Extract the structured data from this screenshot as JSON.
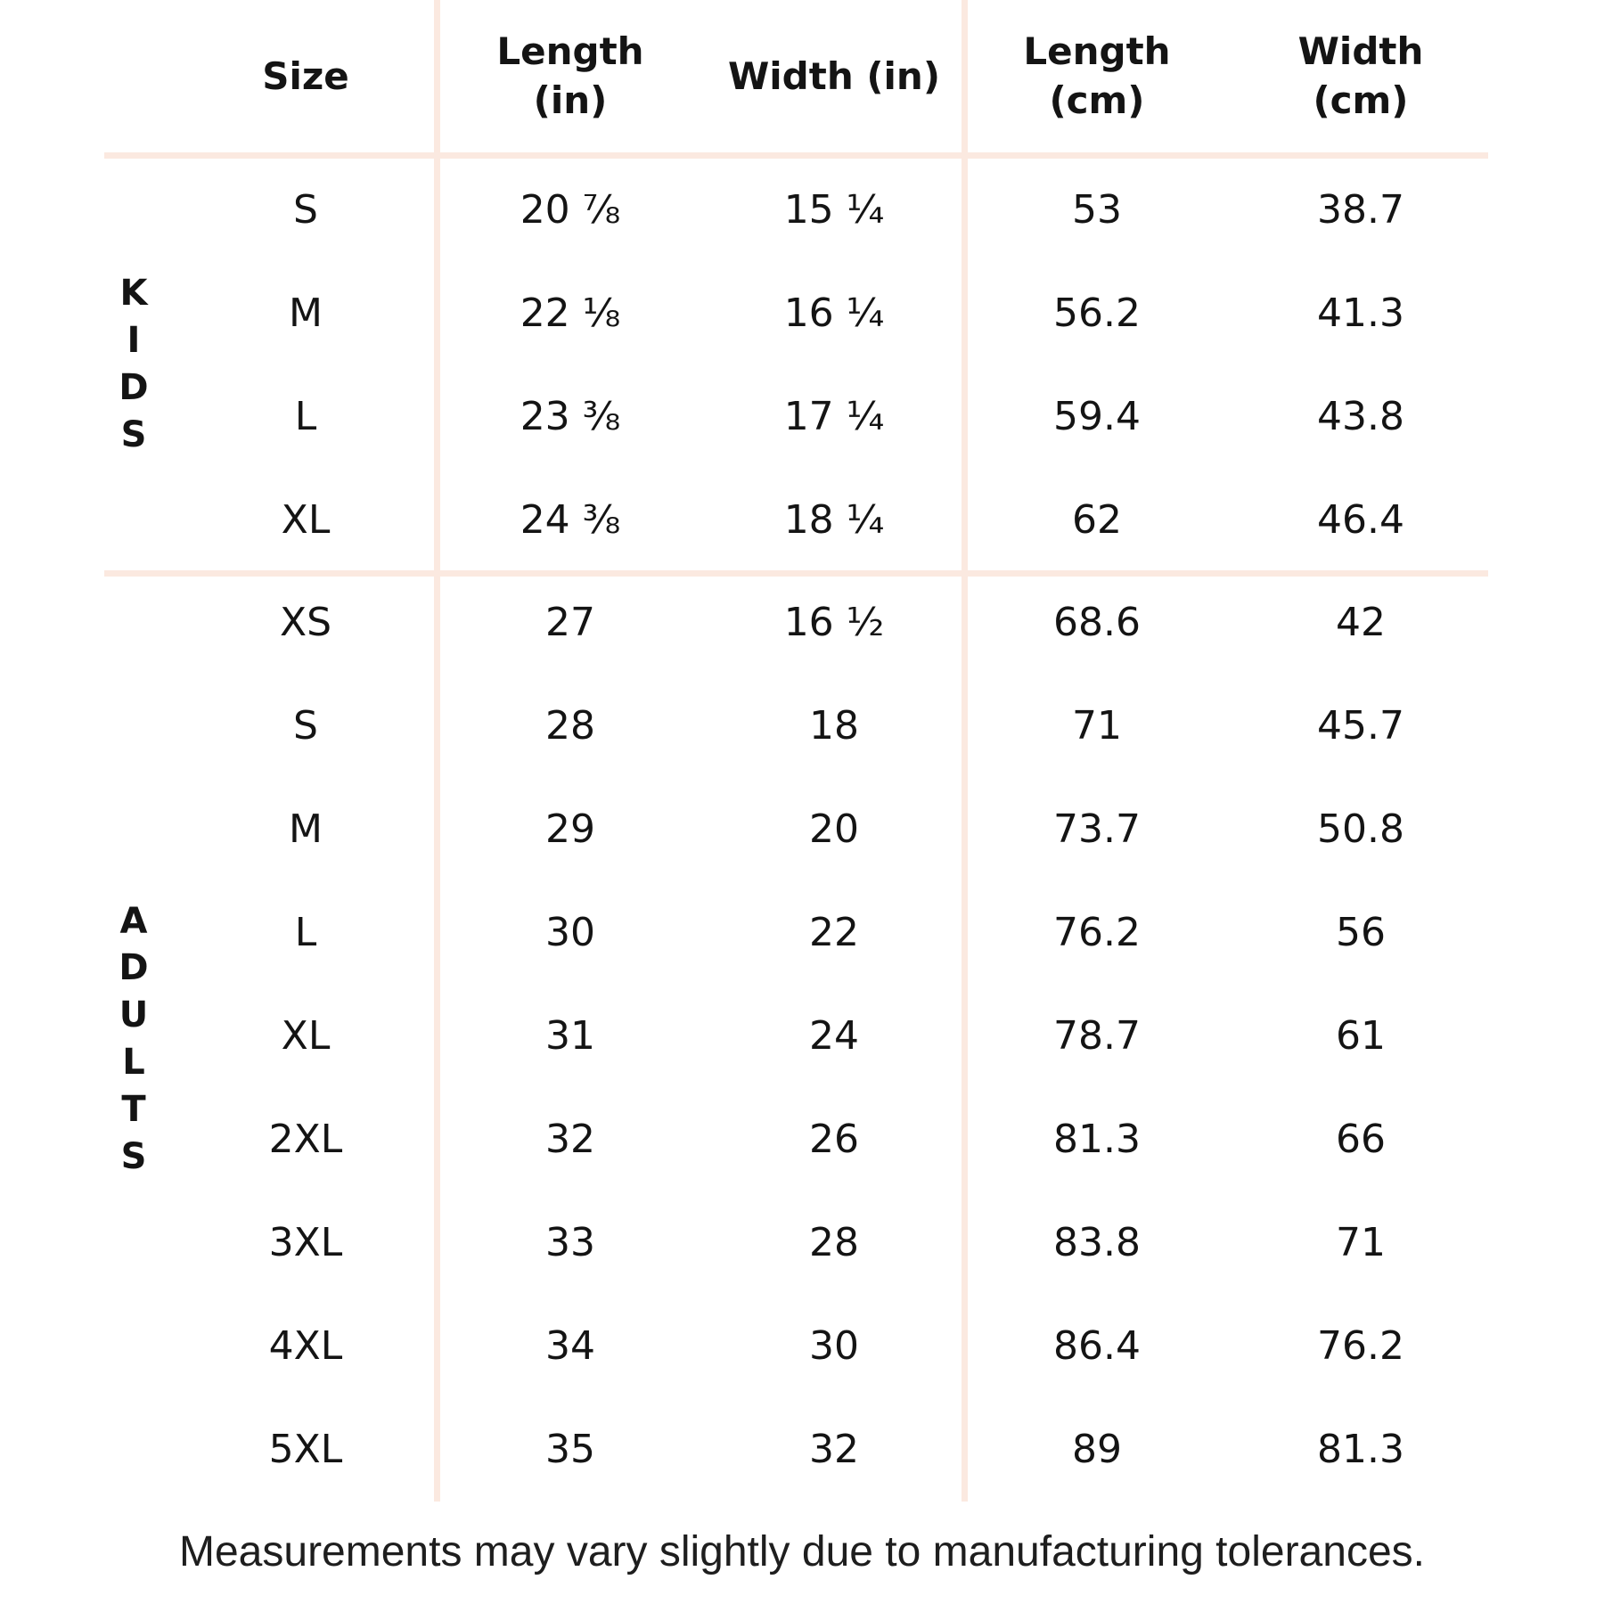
{
  "colors": {
    "divider": "#fbe9e0",
    "text": "#141414",
    "background": "#ffffff"
  },
  "header": {
    "size": "Size",
    "length_in": "Length\n(in)",
    "width_in": "Width (in)",
    "length_cm": "Length\n(cm)",
    "width_cm": "Width\n(cm)"
  },
  "groups": [
    {
      "label": "KIDS",
      "rows": [
        {
          "size": "S",
          "length_in": "20 ⅞",
          "width_in": "15 ¼",
          "length_cm": "53",
          "width_cm": "38.7"
        },
        {
          "size": "M",
          "length_in": "22 ⅛",
          "width_in": "16 ¼",
          "length_cm": "56.2",
          "width_cm": "41.3"
        },
        {
          "size": "L",
          "length_in": "23 ⅜",
          "width_in": "17 ¼",
          "length_cm": "59.4",
          "width_cm": "43.8"
        },
        {
          "size": "XL",
          "length_in": "24 ⅜",
          "width_in": "18 ¼",
          "length_cm": "62",
          "width_cm": "46.4"
        }
      ]
    },
    {
      "label": "ADULTS",
      "rows": [
        {
          "size": "XS",
          "length_in": "27",
          "width_in": "16 ½",
          "length_cm": "68.6",
          "width_cm": "42"
        },
        {
          "size": "S",
          "length_in": "28",
          "width_in": "18",
          "length_cm": "71",
          "width_cm": "45.7"
        },
        {
          "size": "M",
          "length_in": "29",
          "width_in": "20",
          "length_cm": "73.7",
          "width_cm": "50.8"
        },
        {
          "size": "L",
          "length_in": "30",
          "width_in": "22",
          "length_cm": "76.2",
          "width_cm": "56"
        },
        {
          "size": "XL",
          "length_in": "31",
          "width_in": "24",
          "length_cm": "78.7",
          "width_cm": "61"
        },
        {
          "size": "2XL",
          "length_in": "32",
          "width_in": "26",
          "length_cm": "81.3",
          "width_cm": "66"
        },
        {
          "size": "3XL",
          "length_in": "33",
          "width_in": "28",
          "length_cm": "83.8",
          "width_cm": "71"
        },
        {
          "size": "4XL",
          "length_in": "34",
          "width_in": "30",
          "length_cm": "86.4",
          "width_cm": "76.2"
        },
        {
          "size": "5XL",
          "length_in": "35",
          "width_in": "32",
          "length_cm": "89",
          "width_cm": "81.3"
        }
      ]
    }
  ],
  "footer": {
    "note": "Measurements may vary slightly due to manufacturing tolerances."
  },
  "chart_data": {
    "type": "table",
    "columns": [
      "Group",
      "Size",
      "Length (in)",
      "Width (in)",
      "Length (cm)",
      "Width (cm)"
    ],
    "rows": [
      [
        "KIDS",
        "S",
        "20 7/8",
        "15 1/4",
        53,
        38.7
      ],
      [
        "KIDS",
        "M",
        "22 1/8",
        "16 1/4",
        56.2,
        41.3
      ],
      [
        "KIDS",
        "L",
        "23 3/8",
        "17 1/4",
        59.4,
        43.8
      ],
      [
        "KIDS",
        "XL",
        "24 3/8",
        "18 1/4",
        62,
        46.4
      ],
      [
        "ADULTS",
        "XS",
        "27",
        "16 1/2",
        68.6,
        42
      ],
      [
        "ADULTS",
        "S",
        "28",
        "18",
        71,
        45.7
      ],
      [
        "ADULTS",
        "M",
        "29",
        "20",
        73.7,
        50.8
      ],
      [
        "ADULTS",
        "L",
        "30",
        "22",
        76.2,
        56
      ],
      [
        "ADULTS",
        "XL",
        "31",
        "24",
        78.7,
        61
      ],
      [
        "ADULTS",
        "2XL",
        "32",
        "26",
        81.3,
        66
      ],
      [
        "ADULTS",
        "3XL",
        "33",
        "28",
        83.8,
        71
      ],
      [
        "ADULTS",
        "4XL",
        "34",
        "30",
        86.4,
        76.2
      ],
      [
        "ADULTS",
        "5XL",
        "35",
        "32",
        89,
        81.3
      ]
    ],
    "note": "Measurements may vary slightly due to manufacturing tolerances."
  }
}
